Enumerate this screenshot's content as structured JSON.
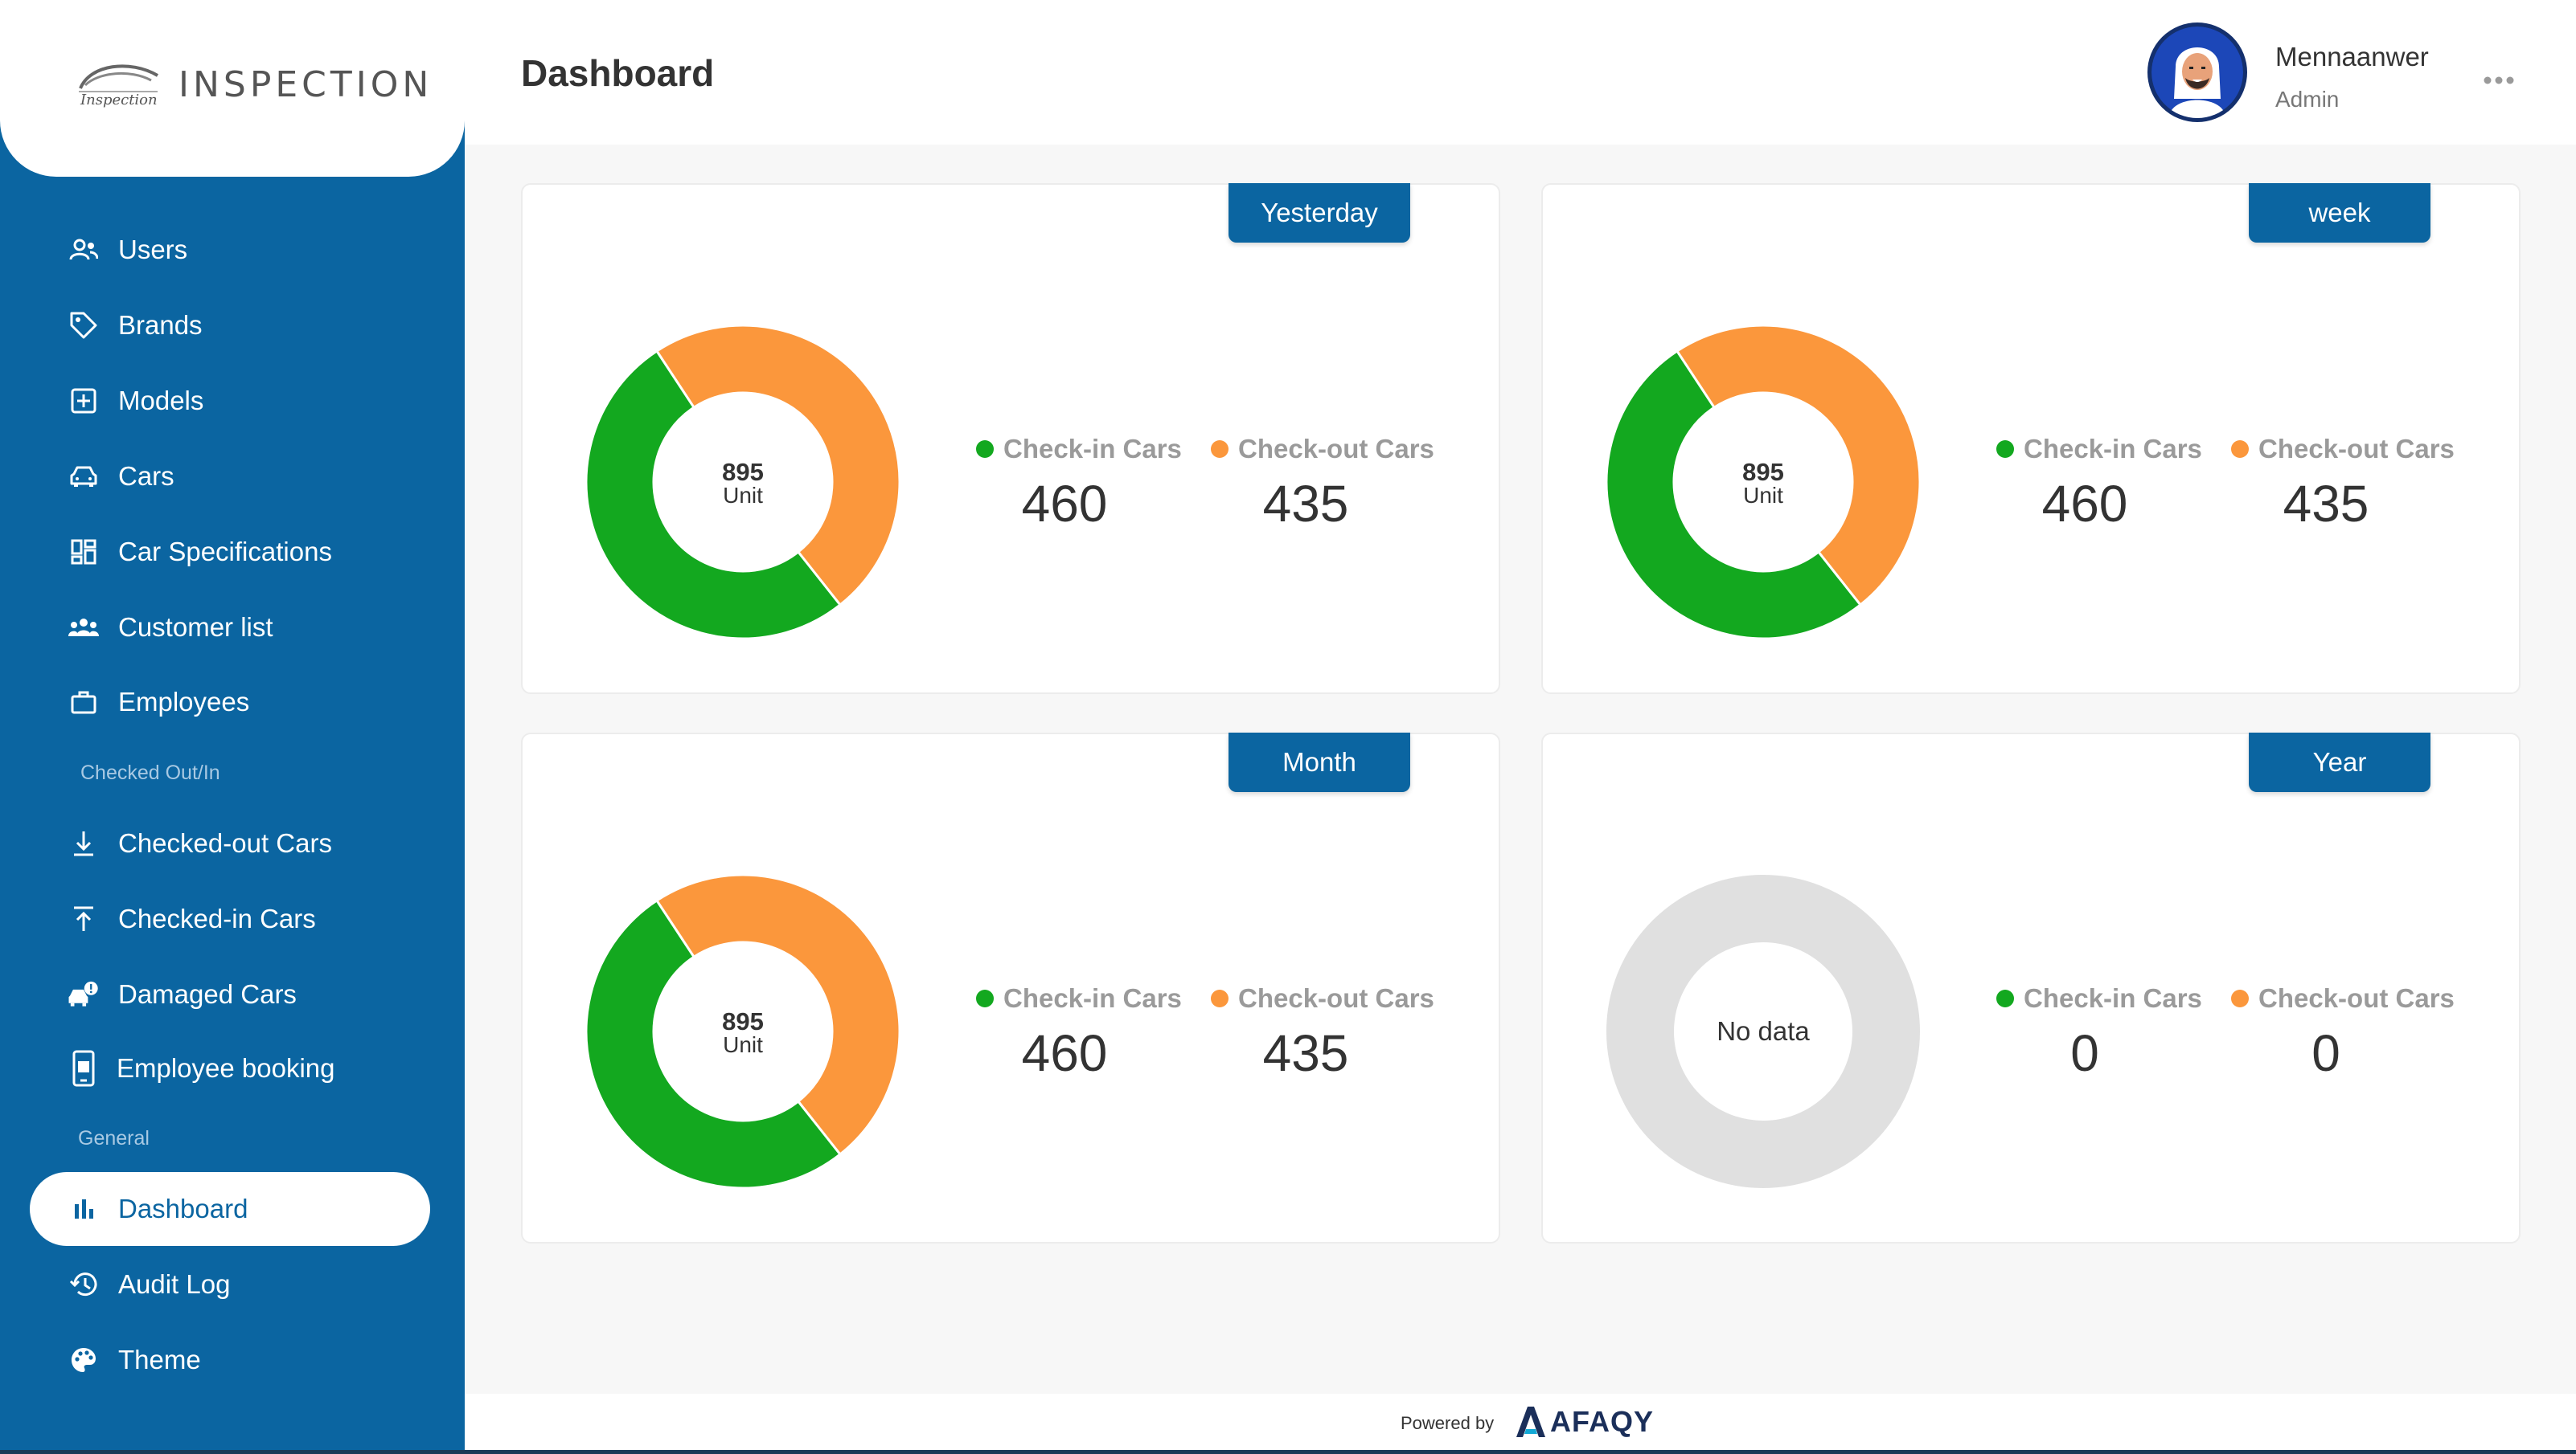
{
  "brand": {
    "logo_text": "INSPECTION",
    "logo_icon": "car-emblem-icon"
  },
  "sidebar": {
    "items_top": [
      {
        "label": "Users",
        "icon": "users-icon"
      },
      {
        "label": "Brands",
        "icon": "tag-icon"
      },
      {
        "label": "Models",
        "icon": "model-box-icon"
      },
      {
        "label": "Cars",
        "icon": "car-icon"
      },
      {
        "label": "Car Specifications",
        "icon": "grid-icon"
      },
      {
        "label": "Customer list",
        "icon": "customers-icon"
      },
      {
        "label": "Employees",
        "icon": "briefcase-icon"
      }
    ],
    "section_checked": "Checked Out/In",
    "items_checked": [
      {
        "label": "Checked-out Cars",
        "icon": "download-icon"
      },
      {
        "label": "Checked-in Cars",
        "icon": "upload-icon"
      },
      {
        "label": "Damaged Cars",
        "icon": "damaged-car-icon"
      },
      {
        "label": "Employee booking",
        "icon": "booking-icon"
      }
    ],
    "section_general": "General",
    "items_general": [
      {
        "label": "Dashboard",
        "icon": "bar-chart-icon",
        "active": true
      },
      {
        "label": "Audit Log",
        "icon": "history-icon"
      },
      {
        "label": "Theme",
        "icon": "palette-icon"
      }
    ]
  },
  "header": {
    "title": "Dashboard",
    "user_name": "Mennaanwer",
    "user_role": "Admin",
    "more_icon": "more-horizontal-icon"
  },
  "colors": {
    "primary": "#0b65a1",
    "checkin": "#13a81f",
    "checkout": "#fb973c",
    "empty": "#e0e0e0"
  },
  "cards": [
    {
      "period": "Yesterday",
      "total": "895",
      "unit": "Unit",
      "checkin_label": "Check-in Cars",
      "checkout_label": "Check-out Cars",
      "checkin": "460",
      "checkout": "435",
      "nodata": ""
    },
    {
      "period": "week",
      "total": "895",
      "unit": "Unit",
      "checkin_label": "Check-in Cars",
      "checkout_label": "Check-out Cars",
      "checkin": "460",
      "checkout": "435",
      "nodata": ""
    },
    {
      "period": "Month",
      "total": "895",
      "unit": "Unit",
      "checkin_label": "Check-in Cars",
      "checkout_label": "Check-out Cars",
      "checkin": "460",
      "checkout": "435",
      "nodata": ""
    },
    {
      "period": "Year",
      "total": "",
      "unit": "",
      "checkin_label": "Check-in Cars",
      "checkout_label": "Check-out Cars",
      "checkin": "0",
      "checkout": "0",
      "nodata": "No data"
    }
  ],
  "footer": {
    "powered_by": "Powered by",
    "brand": "AFAQY"
  }
}
